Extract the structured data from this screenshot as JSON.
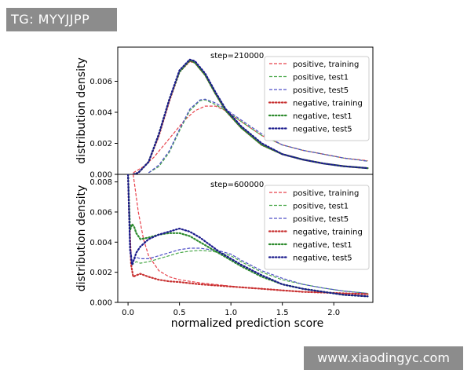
{
  "watermarks": {
    "top_left": "TG: MYYJJPP",
    "bottom_right": "www.xiaodingyc.com"
  },
  "colors": {
    "positive_training": "#e8414a",
    "positive_test1": "#4aa84a",
    "positive_test5": "#5050c8",
    "negative_training": "#c83232",
    "negative_test1": "#2e8b2e",
    "negative_test5": "#1a1a8c",
    "watermark_bg": "#8c8c8c"
  },
  "chart_data": [
    {
      "type": "line",
      "title": "step=210000",
      "xlabel": "",
      "ylabel": "distribution density",
      "xlim": [
        -0.1,
        2.38
      ],
      "ylim": [
        0,
        0.0082
      ],
      "yticks": [
        0,
        0.002,
        0.004,
        0.006
      ],
      "ytick_labels": [
        "0.000",
        "0.002",
        "0.004",
        "0.006"
      ],
      "legend_position": "top-right",
      "series": [
        {
          "name": "positive, training",
          "style": "dashed",
          "color_key": "positive_training",
          "x": [
            0.05,
            0.15,
            0.25,
            0.35,
            0.45,
            0.55,
            0.65,
            0.75,
            0.85,
            0.95,
            1.1,
            1.3,
            1.5,
            1.7,
            1.9,
            2.1,
            2.33
          ],
          "y": [
            0.0001,
            0.0005,
            0.0011,
            0.0019,
            0.0027,
            0.0035,
            0.0041,
            0.0044,
            0.0044,
            0.0041,
            0.0034,
            0.0025,
            0.0019,
            0.00155,
            0.0013,
            0.00105,
            0.00088
          ]
        },
        {
          "name": "positive, test1",
          "style": "dashed",
          "color_key": "positive_test1",
          "x": [
            0.2,
            0.3,
            0.4,
            0.5,
            0.6,
            0.7,
            0.75,
            0.85,
            0.95,
            1.1,
            1.3,
            1.5,
            1.7,
            1.9,
            2.1,
            2.33
          ],
          "y": [
            0.0001,
            0.0005,
            0.0014,
            0.0028,
            0.0041,
            0.00475,
            0.0048,
            0.0045,
            0.0041,
            0.0034,
            0.0025,
            0.0019,
            0.00155,
            0.0013,
            0.00105,
            0.00085
          ]
        },
        {
          "name": "positive, test5",
          "style": "dashed",
          "color_key": "positive_test5",
          "x": [
            0.2,
            0.3,
            0.4,
            0.5,
            0.6,
            0.7,
            0.75,
            0.85,
            0.95,
            1.1,
            1.3,
            1.5,
            1.7,
            1.9,
            2.1,
            2.33
          ],
          "y": [
            0.0001,
            0.0006,
            0.0015,
            0.0029,
            0.0042,
            0.0048,
            0.00485,
            0.0046,
            0.0042,
            0.0035,
            0.0026,
            0.0019,
            0.00155,
            0.0013,
            0.00105,
            0.00085
          ]
        },
        {
          "name": "negative, training",
          "style": "dotted",
          "color_key": "negative_training",
          "x": [
            0.05,
            0.1,
            0.2,
            0.3,
            0.4,
            0.5,
            0.6,
            0.65,
            0.75,
            0.85,
            0.95,
            1.1,
            1.3,
            1.5,
            1.7,
            1.9,
            2.1,
            2.33
          ],
          "y": [
            0.0,
            0.0001,
            0.0008,
            0.0025,
            0.0047,
            0.0066,
            0.0073,
            0.0072,
            0.0064,
            0.0052,
            0.0041,
            0.003,
            0.0019,
            0.0013,
            0.00095,
            0.0007,
            0.00052,
            0.0004
          ]
        },
        {
          "name": "negative, test1",
          "style": "dotted",
          "color_key": "negative_test1",
          "x": [
            0.05,
            0.1,
            0.2,
            0.3,
            0.4,
            0.5,
            0.6,
            0.65,
            0.75,
            0.85,
            0.95,
            1.1,
            1.3,
            1.5,
            1.7,
            1.9,
            2.1,
            2.33
          ],
          "y": [
            0.0,
            0.0001,
            0.0008,
            0.0026,
            0.0048,
            0.0066,
            0.00735,
            0.0072,
            0.0064,
            0.0052,
            0.0041,
            0.003,
            0.0019,
            0.0013,
            0.00095,
            0.0007,
            0.00052,
            0.0004
          ]
        },
        {
          "name": "negative, test5",
          "style": "dotted",
          "color_key": "negative_test5",
          "x": [
            0.05,
            0.1,
            0.2,
            0.3,
            0.4,
            0.5,
            0.6,
            0.65,
            0.75,
            0.85,
            0.95,
            1.1,
            1.3,
            1.5,
            1.7,
            1.9,
            2.1,
            2.33
          ],
          "y": [
            0.0,
            0.0001,
            0.0008,
            0.0026,
            0.0048,
            0.0067,
            0.0074,
            0.0073,
            0.0065,
            0.0053,
            0.0042,
            0.0031,
            0.002,
            0.0013,
            0.00095,
            0.0007,
            0.00052,
            0.0004
          ]
        }
      ]
    },
    {
      "type": "line",
      "title": "step=600000",
      "xlabel": "normalized prediction score",
      "ylabel": "distribution density",
      "xlim": [
        -0.1,
        2.38
      ],
      "ylim": [
        0,
        0.0085
      ],
      "yticks": [
        0,
        0.002,
        0.004,
        0.006,
        0.008
      ],
      "ytick_labels": [
        "0.000",
        "0.002",
        "0.004",
        "0.006",
        "0.008"
      ],
      "xticks": [
        0,
        0.5,
        1.0,
        1.5,
        2.0
      ],
      "xtick_labels": [
        "0.0",
        "0.5",
        "1.0",
        "1.5",
        "2.0"
      ],
      "legend_position": "top-right",
      "series": [
        {
          "name": "positive, training",
          "style": "dashed",
          "color_key": "positive_training",
          "x": [
            0.05,
            0.07,
            0.1,
            0.15,
            0.2,
            0.3,
            0.4,
            0.5,
            0.7,
            0.9,
            1.1,
            1.3,
            1.5,
            1.7,
            1.9,
            2.1,
            2.33
          ],
          "y": [
            0.0085,
            0.0075,
            0.006,
            0.0042,
            0.0031,
            0.0021,
            0.0017,
            0.0015,
            0.0013,
            0.00115,
            0.001,
            0.0009,
            0.0008,
            0.0007,
            0.00065,
            0.0006,
            0.00055
          ]
        },
        {
          "name": "positive, test1",
          "style": "dashed",
          "color_key": "positive_test1",
          "x": [
            0.0,
            0.02,
            0.04,
            0.08,
            0.12,
            0.2,
            0.3,
            0.4,
            0.5,
            0.6,
            0.7,
            0.8,
            0.9,
            1.0,
            1.1,
            1.3,
            1.5,
            1.7,
            1.9,
            2.1,
            2.33
          ],
          "y": [
            0.0085,
            0.004,
            0.0025,
            0.0027,
            0.0026,
            0.0027,
            0.0029,
            0.0031,
            0.0033,
            0.0034,
            0.00345,
            0.0034,
            0.0033,
            0.0031,
            0.0027,
            0.002,
            0.0015,
            0.0012,
            0.00095,
            0.00075,
            0.0006
          ]
        },
        {
          "name": "positive, test5",
          "style": "dashed",
          "color_key": "positive_test5",
          "x": [
            0.0,
            0.02,
            0.04,
            0.08,
            0.12,
            0.2,
            0.3,
            0.4,
            0.5,
            0.6,
            0.7,
            0.8,
            0.9,
            1.0,
            1.1,
            1.3,
            1.5,
            1.7,
            1.9,
            2.1,
            2.33
          ],
          "y": [
            0.0085,
            0.004,
            0.0027,
            0.003,
            0.0029,
            0.0029,
            0.0031,
            0.0033,
            0.0035,
            0.0036,
            0.0036,
            0.0035,
            0.0034,
            0.0032,
            0.0028,
            0.0021,
            0.0016,
            0.0012,
            0.00095,
            0.00075,
            0.0006
          ]
        },
        {
          "name": "negative, training",
          "style": "dotted",
          "color_key": "negative_training",
          "x": [
            0.0,
            0.01,
            0.03,
            0.05,
            0.08,
            0.12,
            0.2,
            0.3,
            0.4,
            0.5,
            0.7,
            0.9,
            1.1,
            1.3,
            1.5,
            1.7,
            1.9,
            2.1,
            2.33
          ],
          "y": [
            0.0085,
            0.006,
            0.0025,
            0.0017,
            0.0018,
            0.0019,
            0.0017,
            0.0015,
            0.0014,
            0.00135,
            0.0012,
            0.0011,
            0.001,
            0.0009,
            0.0008,
            0.0007,
            0.00065,
            0.0006,
            0.00055
          ]
        },
        {
          "name": "negative, test1",
          "style": "dotted",
          "color_key": "negative_test1",
          "x": [
            0.0,
            0.02,
            0.04,
            0.06,
            0.08,
            0.12,
            0.2,
            0.3,
            0.4,
            0.5,
            0.6,
            0.7,
            0.8,
            0.9,
            1.0,
            1.1,
            1.3,
            1.5,
            1.7,
            1.9,
            2.1,
            2.33
          ],
          "y": [
            0.0085,
            0.0048,
            0.0052,
            0.005,
            0.0046,
            0.0042,
            0.0043,
            0.0045,
            0.0046,
            0.0046,
            0.0044,
            0.004,
            0.0036,
            0.0032,
            0.0028,
            0.0024,
            0.0017,
            0.0012,
            0.0009,
            0.0007,
            0.0005,
            0.0004
          ]
        },
        {
          "name": "negative, test5",
          "style": "dotted",
          "color_key": "negative_test5",
          "x": [
            0.0,
            0.02,
            0.04,
            0.08,
            0.12,
            0.2,
            0.3,
            0.4,
            0.5,
            0.6,
            0.7,
            0.8,
            0.9,
            1.0,
            1.1,
            1.3,
            1.5,
            1.7,
            1.9,
            2.1,
            2.33
          ],
          "y": [
            0.0085,
            0.0035,
            0.0025,
            0.0033,
            0.0037,
            0.0042,
            0.0045,
            0.0047,
            0.0049,
            0.0047,
            0.0043,
            0.0038,
            0.0033,
            0.0029,
            0.0025,
            0.0018,
            0.0012,
            0.0009,
            0.0007,
            0.0005,
            0.0004
          ]
        }
      ]
    }
  ]
}
